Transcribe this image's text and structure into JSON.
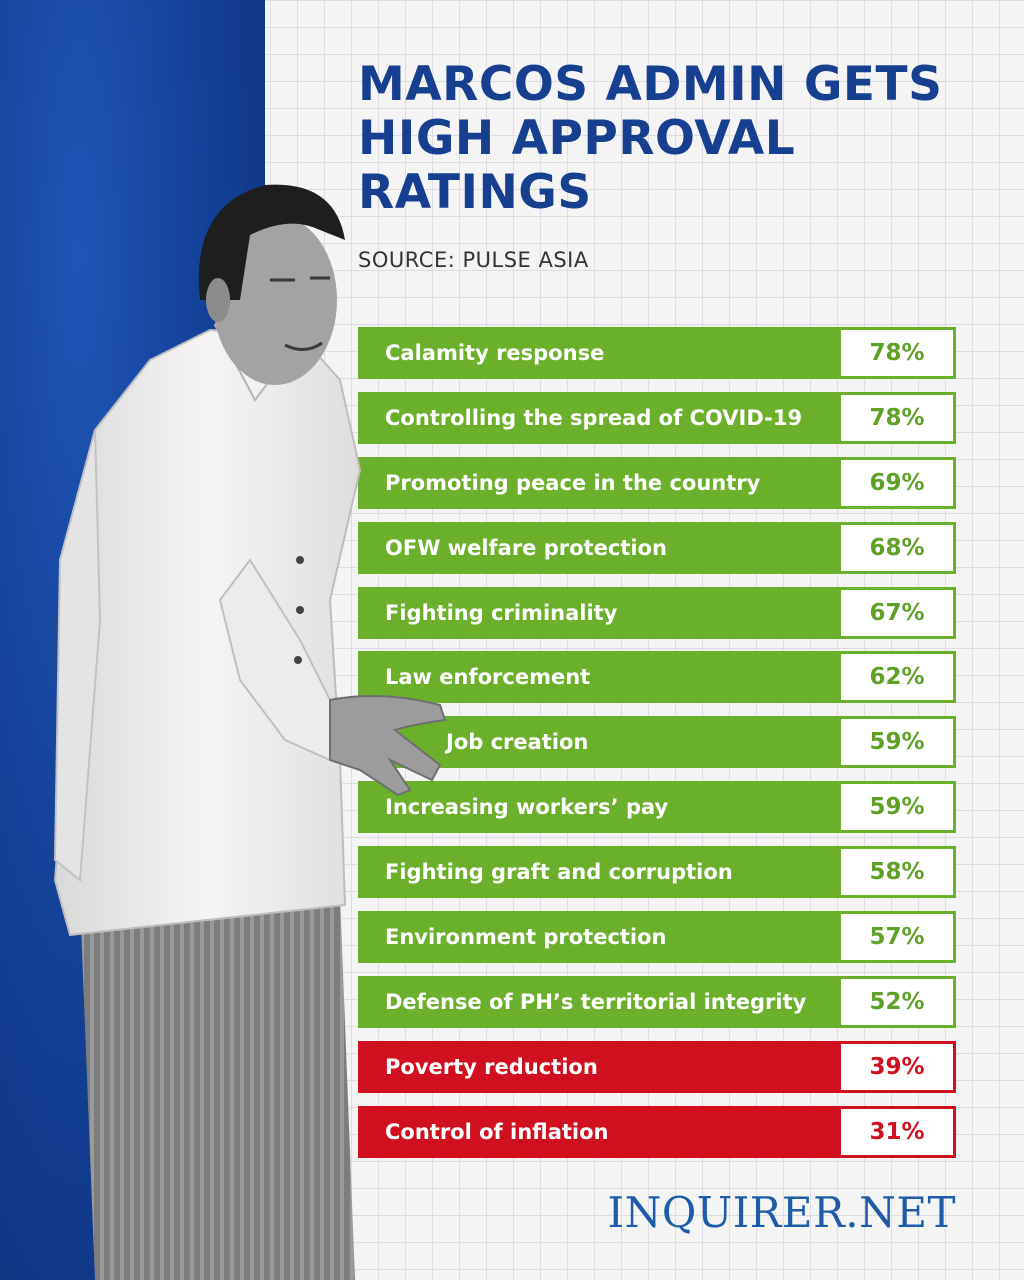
{
  "headline": {
    "lines": [
      "MARCOS ADMIN GETS",
      "HIGH APPROVAL",
      "RATINGS"
    ]
  },
  "source": "SOURCE: PULSE ASIA",
  "ratings": [
    {
      "label": "Calamity response",
      "value": "78%",
      "status": "high"
    },
    {
      "label": "Controlling the spread of COVID-19",
      "value": "78%",
      "status": "high"
    },
    {
      "label": "Promoting peace in the country",
      "value": "69%",
      "status": "high"
    },
    {
      "label": "OFW welfare protection",
      "value": "68%",
      "status": "high"
    },
    {
      "label": "Fighting criminality",
      "value": "67%",
      "status": "high"
    },
    {
      "label": "Law enforcement",
      "value": "62%",
      "status": "high"
    },
    {
      "label": "Job creation",
      "value": "59%",
      "status": "high"
    },
    {
      "label": "Increasing workers’ pay",
      "value": "59%",
      "status": "high"
    },
    {
      "label": "Fighting graft and corruption",
      "value": "58%",
      "status": "high"
    },
    {
      "label": "Environment protection",
      "value": "57%",
      "status": "high"
    },
    {
      "label": "Defense of PH’s territorial integrity",
      "value": "52%",
      "status": "high"
    },
    {
      "label": "Poverty reduction",
      "value": "39%",
      "status": "low"
    },
    {
      "label": "Control of inflation",
      "value": "31%",
      "status": "low"
    }
  ],
  "logo": "INQUIRER.NET",
  "colors": {
    "title_blue": "#173f8f",
    "panel_blue": "#134299",
    "approve_green": "#6ab02b",
    "disapprove_red": "#d0101f",
    "logo_blue": "#1d5aa8"
  }
}
